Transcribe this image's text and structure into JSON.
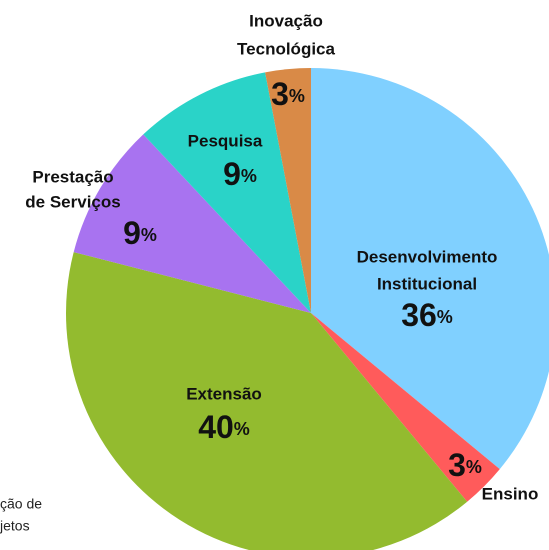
{
  "chart_data": {
    "type": "pie",
    "categories": [
      [
        "Desenvolvimento",
        "Institucional"
      ],
      [
        "Ensino"
      ],
      [
        "Extensão"
      ],
      [
        "Prestação",
        "de Serviços"
      ],
      [
        "Pesquisa"
      ],
      [
        "Inovação",
        "Tecnológica"
      ]
    ],
    "values": [
      36,
      3,
      40,
      9,
      9,
      3
    ],
    "value_labels": [
      "36%",
      "3%",
      "40%",
      "9%",
      "9%",
      "3%"
    ],
    "colors": [
      "#80d0ff",
      "#ff5b5b",
      "#93bb2f",
      "#a873f0",
      "#2ad3c8",
      "#d98a47"
    ],
    "annotation": [
      "ção de",
      "jetos"
    ]
  }
}
